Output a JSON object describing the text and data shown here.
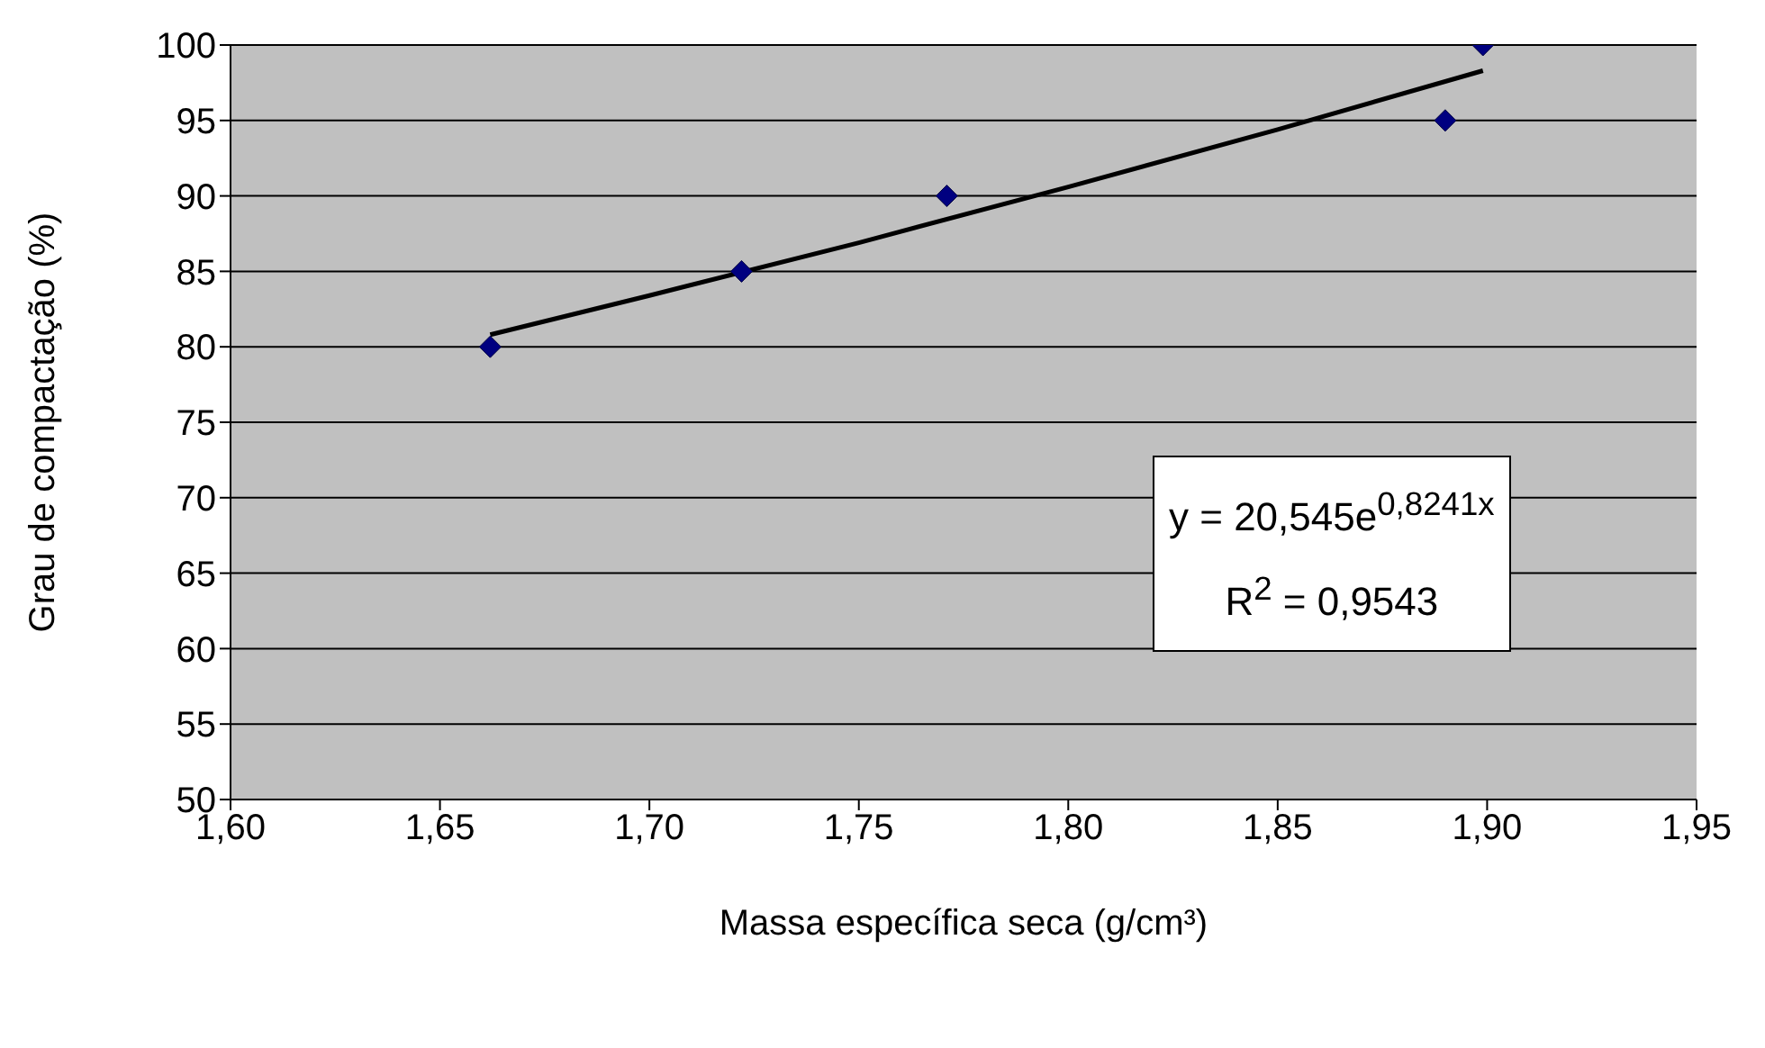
{
  "chart_data": {
    "type": "scatter",
    "xlabel": "Massa específica seca (g/cm³)",
    "ylabel": "Grau de compactação (%)",
    "series": [
      {
        "color": "#000080",
        "marker": "diamond",
        "x": [
          1.662,
          1.722,
          1.771,
          1.89,
          1.899
        ],
        "values": [
          80,
          85,
          90,
          95,
          100
        ]
      },
      {
        "type": "line",
        "color": "#000000",
        "marker": "none",
        "x": [
          1.662,
          1.7,
          1.75,
          1.8,
          1.85,
          1.899
        ],
        "values": [
          80.8,
          83.4,
          86.9,
          90.6,
          94.4,
          98.3
        ]
      }
    ],
    "xlim": [
      1.6,
      1.95
    ],
    "xticks": [
      {
        "value": 1.6,
        "label": "1,60"
      },
      {
        "value": 1.65,
        "label": "1,65"
      },
      {
        "value": 1.7,
        "label": "1,70"
      },
      {
        "value": 1.75,
        "label": "1,75"
      },
      {
        "value": 1.8,
        "label": "1,80"
      },
      {
        "value": 1.85,
        "label": "1,85"
      },
      {
        "value": 1.9,
        "label": "1,90"
      },
      {
        "value": 1.95,
        "label": "1,95"
      }
    ],
    "ylim": [
      50,
      100
    ],
    "yticks": [
      50,
      55,
      60,
      65,
      70,
      75,
      80,
      85,
      90,
      95,
      100
    ],
    "grid": "y",
    "annotations": [
      "y = 20,545e$^{0,8241x}$",
      "R$^{2}$ = 0,9543"
    ]
  }
}
